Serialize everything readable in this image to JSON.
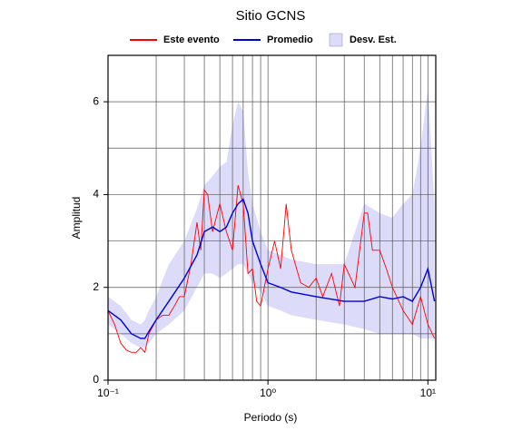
{
  "chart_data": {
    "type": "line",
    "title": "Sitio GCNS",
    "x_label": "Periodo (s)",
    "y_label": "Amplitud",
    "x_scale": "log",
    "grid": true,
    "legend_position": "top",
    "xlim": [
      0.1,
      11.2
    ],
    "ylim": [
      0,
      7
    ],
    "xticks": [
      {
        "value": 0.1,
        "label": "10⁻¹"
      },
      {
        "value": 1,
        "label": "10⁰"
      },
      {
        "value": 10,
        "label": "10¹"
      }
    ],
    "x_minor_ticks": [
      0.2,
      0.3,
      0.4,
      0.5,
      0.6,
      0.7,
      0.8,
      0.9,
      2,
      3,
      4,
      5,
      6,
      7,
      8,
      9
    ],
    "yticks": [
      0,
      2,
      4,
      6
    ],
    "y_minor_ticks": [
      1,
      3,
      5
    ],
    "band": {
      "name": "Desv. Est.",
      "color": "#dcdcfa",
      "x": [
        0.1,
        0.12,
        0.14,
        0.16,
        0.17,
        0.18,
        0.2,
        0.24,
        0.3,
        0.36,
        0.4,
        0.45,
        0.5,
        0.55,
        0.6,
        0.65,
        0.7,
        0.75,
        0.8,
        0.9,
        1.0,
        1.2,
        1.4,
        2,
        3,
        4,
        5,
        6,
        7,
        8,
        9,
        10,
        11
      ],
      "lower": [
        1.2,
        1.0,
        0.8,
        0.7,
        0.7,
        0.8,
        1.0,
        1.2,
        1.5,
        2.0,
        2.3,
        2.3,
        2.2,
        2.3,
        2.4,
        2.5,
        2.5,
        2.3,
        2.1,
        1.9,
        1.6,
        1.5,
        1.4,
        1.3,
        1.2,
        1.1,
        1.0,
        1.0,
        1.0,
        1.0,
        0.9,
        0.9,
        0.9
      ],
      "upper": [
        1.8,
        1.6,
        1.3,
        1.2,
        1.3,
        1.5,
        1.8,
        2.5,
        3.0,
        3.7,
        4.2,
        4.4,
        4.6,
        4.7,
        5.5,
        6.0,
        5.8,
        4.5,
        3.8,
        3.2,
        2.8,
        2.7,
        2.6,
        2.5,
        2.5,
        3.8,
        3.6,
        3.5,
        3.8,
        4.0,
        5.0,
        6.3,
        3.8
      ]
    },
    "series": [
      {
        "name": "Este evento",
        "color": "#ff0000",
        "x": [
          0.1,
          0.11,
          0.12,
          0.13,
          0.14,
          0.15,
          0.16,
          0.17,
          0.18,
          0.2,
          0.22,
          0.24,
          0.26,
          0.28,
          0.3,
          0.33,
          0.36,
          0.38,
          0.4,
          0.42,
          0.45,
          0.5,
          0.55,
          0.6,
          0.65,
          0.7,
          0.75,
          0.8,
          0.85,
          0.9,
          1.0,
          1.1,
          1.2,
          1.3,
          1.4,
          1.6,
          1.8,
          2,
          2.2,
          2.5,
          2.8,
          3,
          3.5,
          4,
          4.2,
          4.5,
          5,
          5.5,
          6,
          7,
          8,
          9,
          10,
          11
        ],
        "values": [
          1.5,
          1.2,
          0.8,
          0.65,
          0.6,
          0.6,
          0.7,
          0.6,
          1.0,
          1.3,
          1.4,
          1.4,
          1.6,
          1.8,
          1.8,
          2.5,
          3.4,
          2.8,
          4.1,
          4.0,
          3.2,
          3.8,
          3.2,
          2.8,
          4.2,
          3.8,
          2.3,
          2.4,
          1.7,
          1.6,
          2.4,
          3.0,
          2.4,
          3.8,
          2.8,
          2.1,
          2.0,
          2.2,
          1.8,
          2.3,
          1.6,
          2.5,
          2.0,
          3.6,
          3.6,
          2.8,
          2.8,
          2.4,
          2.0,
          1.5,
          1.2,
          1.8,
          1.2,
          0.9
        ]
      },
      {
        "name": "Promedio",
        "color": "#0000dd",
        "x": [
          0.1,
          0.12,
          0.14,
          0.16,
          0.17,
          0.18,
          0.2,
          0.24,
          0.3,
          0.36,
          0.4,
          0.45,
          0.5,
          0.55,
          0.6,
          0.65,
          0.7,
          0.75,
          0.8,
          0.9,
          1.0,
          1.2,
          1.4,
          2,
          3,
          4,
          5,
          6,
          7,
          8,
          9,
          10,
          11
        ],
        "values": [
          1.5,
          1.3,
          1.0,
          0.9,
          0.9,
          1.05,
          1.3,
          1.7,
          2.2,
          2.7,
          3.2,
          3.3,
          3.2,
          3.3,
          3.6,
          3.8,
          3.9,
          3.6,
          3.0,
          2.5,
          2.1,
          2.0,
          1.9,
          1.8,
          1.7,
          1.7,
          1.8,
          1.75,
          1.8,
          1.7,
          2.0,
          2.4,
          1.7
        ]
      }
    ]
  }
}
